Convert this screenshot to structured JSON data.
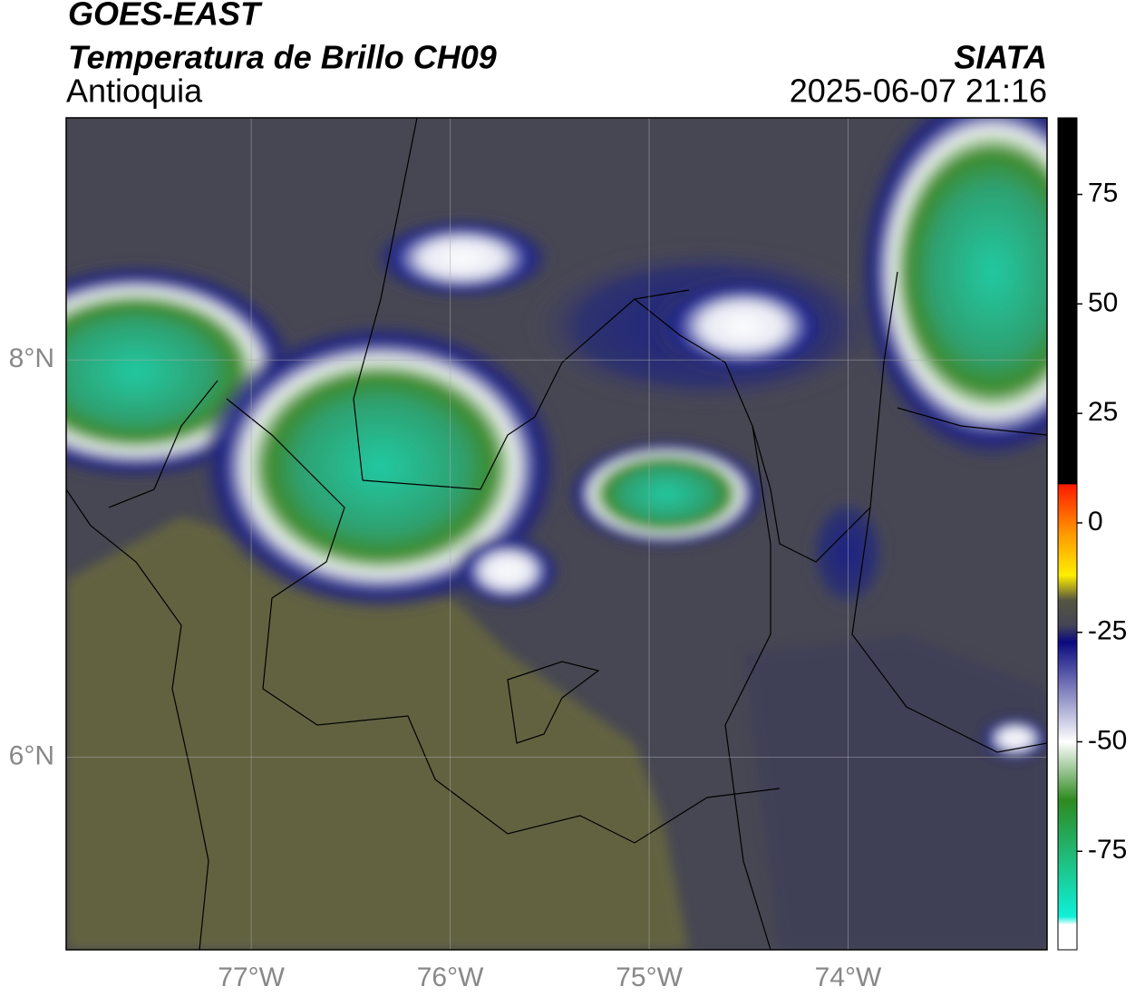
{
  "header": {
    "title": "GOES-EAST",
    "subtitle": "Temperatura de Brillo CH09",
    "region": "Antioquia",
    "source": "SIATA",
    "datetime": "2025-06-07 21:16"
  },
  "map": {
    "xlim": [
      -77.93,
      -73.0
    ],
    "ylim": [
      5.03,
      9.22
    ],
    "xticks": [
      {
        "value": -77,
        "label": "77°W"
      },
      {
        "value": -76,
        "label": "76°W"
      },
      {
        "value": -75,
        "label": "75°W"
      },
      {
        "value": -74,
        "label": "74°W"
      }
    ],
    "yticks": [
      {
        "value": 6,
        "label": "6°N"
      },
      {
        "value": 8,
        "label": "8°N"
      }
    ],
    "grid": true
  },
  "colorbar": {
    "lim": [
      -97.5,
      92.5
    ],
    "ticks": [
      75,
      50,
      25,
      0,
      -25,
      -50,
      -75
    ]
  }
}
